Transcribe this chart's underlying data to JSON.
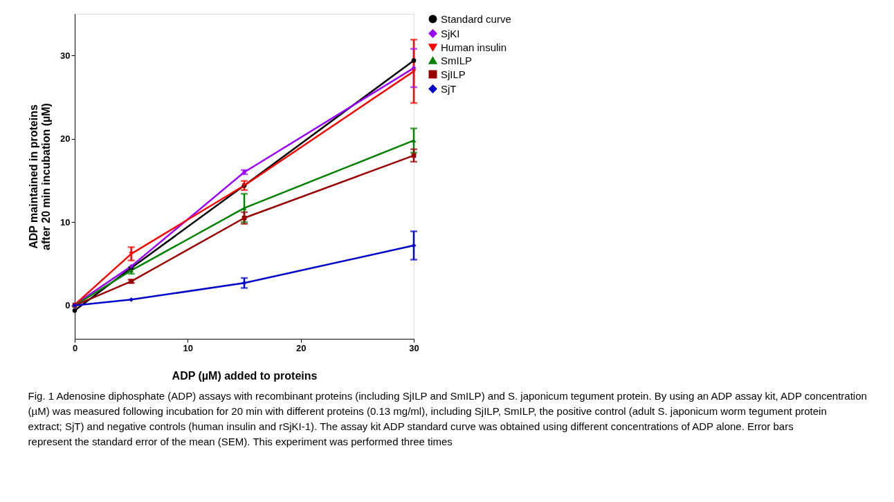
{
  "chart_data": {
    "type": "line",
    "xlabel": "ADP (µM) added to proteins",
    "ylabel": "ADP maintained in proteins\nafter 20 min incubation  (µM)",
    "x": [
      0,
      5,
      15,
      30
    ],
    "xlim": [
      0,
      30
    ],
    "xticks": [
      0,
      10,
      20,
      30
    ],
    "ylim": [
      -4,
      35
    ],
    "yticks": [
      0,
      10,
      20,
      30
    ],
    "grid": false,
    "legend": "right",
    "line_style": "solid",
    "series": [
      {
        "name": "Standard curve",
        "color": "#000000",
        "marker": "circle",
        "values": [
          -0.6,
          4.5,
          14.4,
          29.4
        ]
      },
      {
        "name": "SjKI",
        "color": "#9900ff",
        "marker": "diamond",
        "values": [
          0.1,
          4.7,
          16.0,
          28.5
        ],
        "errors": [
          null,
          null,
          0.25,
          2.3
        ]
      },
      {
        "name": "Human insulin",
        "color": "#ff0000",
        "marker": "triangle-down",
        "values": [
          0.1,
          6.2,
          14.4,
          28.1
        ],
        "errors": [
          null,
          0.8,
          0.55,
          3.8
        ]
      },
      {
        "name": "SmILP",
        "color": "#008000",
        "marker": "triangle-up",
        "values": [
          0,
          4.2,
          11.7,
          19.8
        ],
        "errors": [
          null,
          0.4,
          1.7,
          1.45
        ]
      },
      {
        "name": "SjILP",
        "color": "#990000",
        "marker": "square",
        "values": [
          0,
          2.9,
          10.5,
          18.0
        ],
        "errors": [
          null,
          0.2,
          0.7,
          0.75
        ]
      },
      {
        "name": "SjT",
        "color": "#0000cc",
        "marker": "diamond",
        "values": [
          0,
          0.7,
          2.7,
          7.2
        ],
        "errors": [
          null,
          null,
          0.6,
          1.7
        ]
      }
    ],
    "annotations": [
      "Fig. 1 Adenosine diphosphate (ADP) assays with recombinant proteins (including SjILP and SmILP) and S. japonicum tegument protein. By using an ADP assay kit, ADP concentration (µM) was measured following incubation for 20 min with different proteins (0.13 mg/ml), including SjILP, SmILP, the positive control (adult S. japonicum worm tegument protein extract; SjT) and negative controls (human insulin and rSjKI-1). The assay kit ADP standard curve was obtained using different concentrations of ADP alone. Error bars represent the standard error of the mean (SEM). This experiment was performed three times"
    ]
  }
}
